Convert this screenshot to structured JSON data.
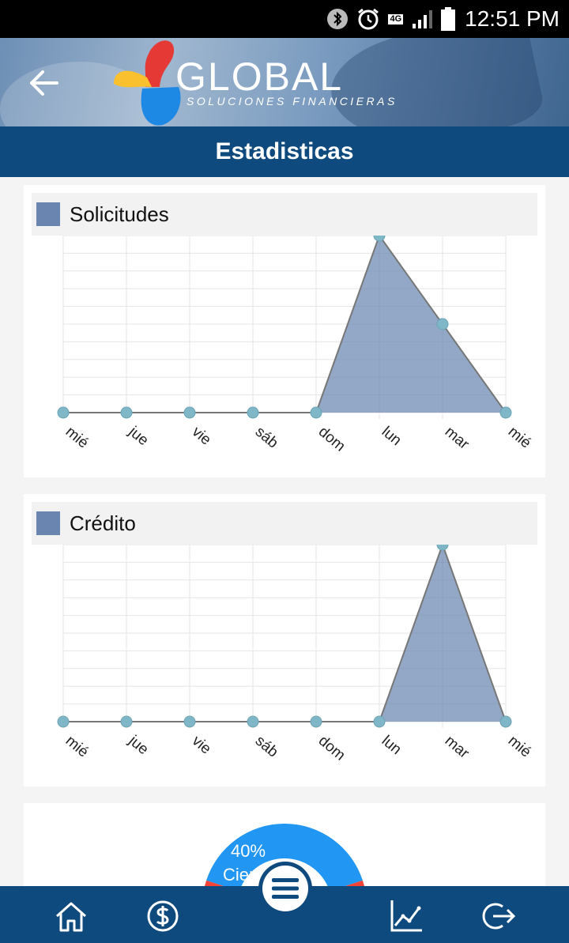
{
  "status_bar": {
    "network": "4G",
    "time": "12:51 PM",
    "icons": [
      "bluetooth-icon",
      "alarm-icon",
      "signal-icon",
      "battery-icon"
    ]
  },
  "header": {
    "logo_name": "GLOBAL",
    "logo_tagline": "SOLUCIONES FINANCIERAS",
    "title": "Estadisticas"
  },
  "colors": {
    "primary": "#0e4a7e",
    "area_fill": "#6a86b0",
    "point": "#7fb6c8",
    "donut_blue": "#2196f3",
    "donut_red": "#f44336"
  },
  "chart_data": [
    {
      "type": "area",
      "legend": "Solicitudes",
      "categories": [
        "mié",
        "jue",
        "vie",
        "sáb",
        "dom",
        "lun",
        "mar",
        "mié"
      ],
      "series": [
        {
          "name": "Solicitudes",
          "values": [
            0,
            0,
            0,
            0,
            0,
            2,
            1,
            0
          ]
        }
      ],
      "ylim": [
        0,
        2
      ],
      "grid": true
    },
    {
      "type": "area",
      "legend": "Crédito",
      "categories": [
        "mié",
        "jue",
        "vie",
        "sáb",
        "dom",
        "lun",
        "mar",
        "mié"
      ],
      "series": [
        {
          "name": "Crédito",
          "values": [
            0,
            0,
            0,
            0,
            0,
            0,
            1,
            0
          ]
        }
      ],
      "ylim": [
        0,
        1
      ],
      "grid": true
    },
    {
      "type": "pie",
      "slices": [
        {
          "label": "40%",
          "sublabel": "Cierr",
          "value": 40,
          "color": "#2196f3"
        },
        {
          "label": "",
          "sublabel": "",
          "value": 60,
          "color": "#f44336"
        }
      ]
    }
  ],
  "nav": {
    "items": [
      "home-icon",
      "dollar-icon",
      "menu-icon",
      "stats-icon",
      "logout-icon"
    ]
  }
}
